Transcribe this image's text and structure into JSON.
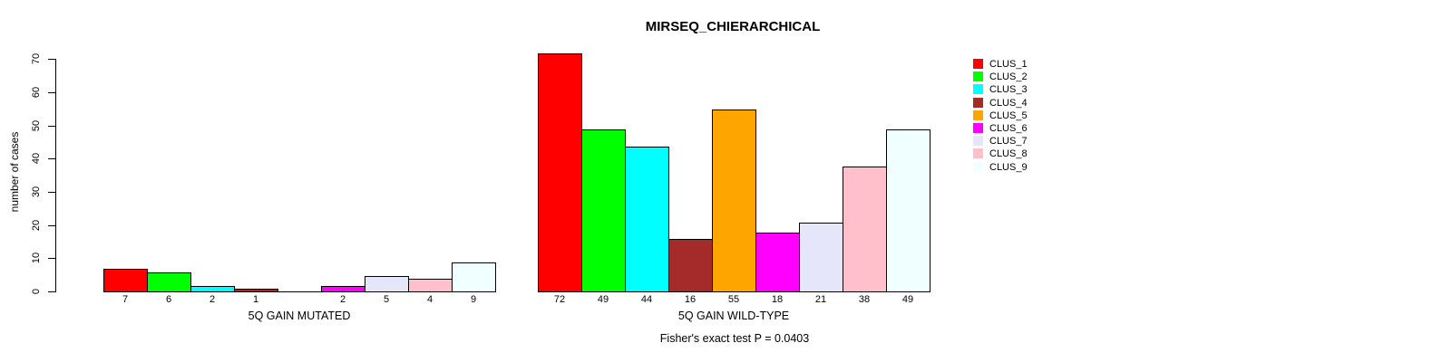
{
  "chart_data": {
    "type": "bar",
    "title": "MIRSEQ_CHIERARCHICAL",
    "ylabel": "number of cases",
    "annotation": "Fisher's exact test P = 0.0403",
    "ylim": [
      0,
      70
    ],
    "yticks": [
      0,
      10,
      20,
      30,
      40,
      50,
      60,
      70
    ],
    "grid": false,
    "legend_position": "right",
    "categories": [
      "5Q GAIN MUTATED",
      "5Q GAIN WILD-TYPE"
    ],
    "series": [
      {
        "name": "CLUS_1",
        "color": "#FF0000",
        "values": [
          7,
          72
        ]
      },
      {
        "name": "CLUS_2",
        "color": "#00FF00",
        "values": [
          6,
          49
        ]
      },
      {
        "name": "CLUS_3",
        "color": "#00FFFF",
        "values": [
          2,
          44
        ]
      },
      {
        "name": "CLUS_4",
        "color": "#A52A2A",
        "values": [
          1,
          16
        ]
      },
      {
        "name": "CLUS_5",
        "color": "#FFA500",
        "values": [
          0,
          55
        ]
      },
      {
        "name": "CLUS_6",
        "color": "#FF00FF",
        "values": [
          2,
          18
        ]
      },
      {
        "name": "CLUS_7",
        "color": "#E6E6FA",
        "values": [
          5,
          21
        ]
      },
      {
        "name": "CLUS_8",
        "color": "#FFC0CB",
        "values": [
          4,
          38
        ]
      },
      {
        "name": "CLUS_9",
        "color": "#F0FFFF",
        "values": [
          9,
          49
        ]
      }
    ],
    "bar_value_labels": {
      "5Q GAIN MUTATED": [
        "7",
        "6",
        "2",
        "1",
        "",
        "2",
        "5",
        "4",
        "9"
      ],
      "5Q GAIN WILD-TYPE": [
        "72",
        "49",
        "44",
        "16",
        "55",
        "18",
        "21",
        "38",
        "49"
      ]
    }
  }
}
